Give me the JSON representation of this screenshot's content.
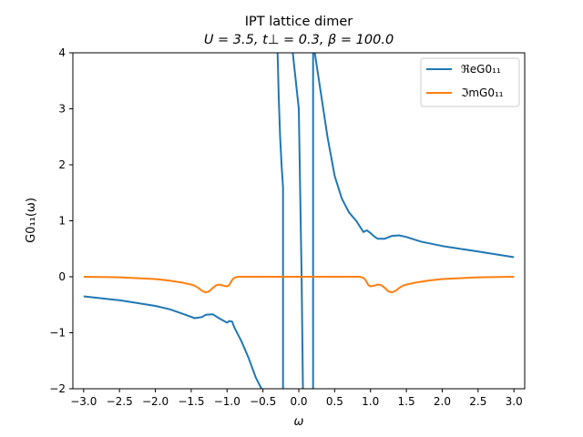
{
  "chart_data": {
    "type": "line",
    "title": "IPT lattice dimer",
    "subtitle": "U = 3.5, t⊥ = 0.3, β = 100.0",
    "xlabel": "ω",
    "ylabel": "G0₁₁(ω)",
    "xlim": [
      -3.15,
      3.15
    ],
    "ylim": [
      -2,
      4
    ],
    "xticks": [
      -3.0,
      -2.5,
      -2.0,
      -1.5,
      -1.0,
      -0.5,
      0.0,
      0.5,
      1.0,
      1.5,
      2.0,
      2.5,
      3.0
    ],
    "xtick_labels": [
      "−3.0",
      "−2.5",
      "−2.0",
      "−1.5",
      "−1.0",
      "−0.5",
      "0.0",
      "0.5",
      "1.0",
      "1.5",
      "2.0",
      "2.5",
      "3.0"
    ],
    "yticks": [
      -2,
      -1,
      0,
      1,
      2,
      3,
      4
    ],
    "ytick_labels": [
      "−2",
      "−1",
      "0",
      "1",
      "2",
      "3",
      "4"
    ],
    "grid": false,
    "legend_position": "upper right",
    "series": [
      {
        "name": "ℜeG0₁₁",
        "color": "#1f77b4",
        "segments": [
          {
            "x": [
              -3.0,
              -2.5,
              -2.0,
              -1.8,
              -1.6,
              -1.45,
              -1.35,
              -1.3,
              -1.2,
              -1.1,
              -1.0,
              -0.97,
              -0.93,
              -0.9,
              -0.8,
              -0.7,
              -0.6,
              -0.5,
              -0.47
            ],
            "y": [
              -0.35,
              -0.42,
              -0.52,
              -0.58,
              -0.67,
              -0.74,
              -0.72,
              -0.68,
              -0.67,
              -0.75,
              -0.82,
              -0.79,
              -0.8,
              -0.9,
              -1.15,
              -1.45,
              -1.8,
              -2.05,
              -2.2
            ]
          },
          {
            "x": [
              -0.3,
              -0.28,
              -0.26,
              -0.24,
              -0.22,
              -0.22
            ],
            "y": [
              4.2,
              3.2,
              2.5,
              2.0,
              1.6,
              -2.2
            ]
          },
          {
            "x": [
              -0.22,
              -0.1,
              0.0,
              0.04,
              0.06
            ],
            "y": [
              4.2,
              4.2,
              3.0,
              0.0,
              -2.2
            ]
          },
          {
            "x": [
              0.2,
              0.2,
              0.3,
              0.4,
              0.5,
              0.6,
              0.7,
              0.8,
              0.9,
              0.95,
              1.0,
              1.05,
              1.1,
              1.2,
              1.3,
              1.4,
              1.5,
              1.7,
              2.0,
              2.5,
              3.0
            ],
            "y": [
              -2.2,
              4.2,
              3.35,
              2.5,
              1.8,
              1.4,
              1.15,
              1.0,
              0.8,
              0.83,
              0.78,
              0.72,
              0.68,
              0.68,
              0.73,
              0.74,
              0.71,
              0.63,
              0.55,
              0.45,
              0.35
            ]
          }
        ]
      },
      {
        "name": "ℑmG0₁₁",
        "color": "#ff7f0e",
        "segments": [
          {
            "x": [
              -3.0,
              -2.5,
              -2.0,
              -1.8,
              -1.6,
              -1.5,
              -1.45,
              -1.4,
              -1.35,
              -1.3,
              -1.25,
              -1.2,
              -1.15,
              -1.1,
              -1.05,
              -1.0,
              -0.97,
              -0.94,
              -0.92,
              -0.9,
              -0.85,
              -0.6,
              -0.3,
              0.0,
              0.3,
              0.6,
              0.85,
              0.9,
              0.92,
              0.94,
              0.97,
              1.0,
              1.05,
              1.1,
              1.15,
              1.2,
              1.25,
              1.3,
              1.35,
              1.4,
              1.45,
              1.5,
              1.6,
              1.8,
              2.0,
              2.5,
              3.0
            ],
            "y": [
              0.0,
              -0.01,
              -0.04,
              -0.07,
              -0.11,
              -0.14,
              -0.16,
              -0.2,
              -0.25,
              -0.28,
              -0.26,
              -0.2,
              -0.15,
              -0.14,
              -0.16,
              -0.17,
              -0.15,
              -0.08,
              -0.04,
              -0.02,
              0.0,
              0.0,
              0.0,
              0.0,
              0.0,
              0.0,
              0.0,
              -0.02,
              -0.04,
              -0.08,
              -0.15,
              -0.17,
              -0.16,
              -0.14,
              -0.15,
              -0.2,
              -0.26,
              -0.28,
              -0.25,
              -0.2,
              -0.16,
              -0.14,
              -0.11,
              -0.07,
              -0.04,
              -0.01,
              0.0
            ]
          }
        ]
      }
    ]
  }
}
